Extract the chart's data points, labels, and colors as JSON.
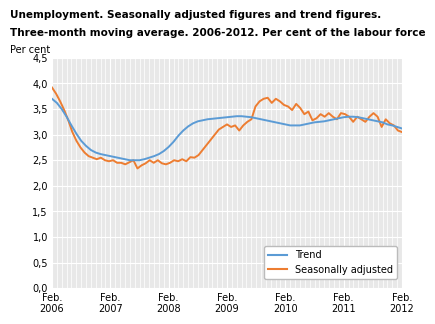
{
  "title_line1": "Unemployment. Seasonally adjusted figures and trend figures.",
  "title_line2": "Three-month moving average. 2006-2012. Per cent of the labour force",
  "ylabel": "Per cent",
  "ylim": [
    0.0,
    4.5
  ],
  "yticks": [
    0.0,
    0.5,
    1.0,
    1.5,
    2.0,
    2.5,
    3.0,
    3.5,
    4.0,
    4.5
  ],
  "ytick_labels": [
    "0,0",
    "0,5",
    "1,0",
    "1,5",
    "2,0",
    "2,5",
    "3,0",
    "3,5",
    "4,0",
    "4,5"
  ],
  "background_color": "#ffffff",
  "plot_bg_color": "#e8e8e8",
  "trend_color": "#5b9bd5",
  "seasonal_color": "#ed7d31",
  "trend_lw": 1.4,
  "seasonal_lw": 1.4,
  "xtick_labels": [
    "Feb.\n2006",
    "Feb.\n2007",
    "Feb.\n2008",
    "Feb.\n2009",
    "Feb.\n2010",
    "Feb.\n2011",
    "Feb.\n2012"
  ],
  "trend": [
    3.7,
    3.62,
    3.5,
    3.35,
    3.18,
    3.02,
    2.88,
    2.78,
    2.7,
    2.65,
    2.62,
    2.6,
    2.58,
    2.56,
    2.54,
    2.52,
    2.5,
    2.5,
    2.5,
    2.52,
    2.55,
    2.58,
    2.62,
    2.68,
    2.76,
    2.86,
    2.98,
    3.08,
    3.16,
    3.22,
    3.26,
    3.28,
    3.3,
    3.31,
    3.32,
    3.33,
    3.34,
    3.35,
    3.36,
    3.36,
    3.35,
    3.34,
    3.32,
    3.3,
    3.28,
    3.26,
    3.24,
    3.22,
    3.2,
    3.18,
    3.18,
    3.18,
    3.2,
    3.22,
    3.24,
    3.25,
    3.26,
    3.28,
    3.3,
    3.32,
    3.34,
    3.35,
    3.35,
    3.34,
    3.32,
    3.3,
    3.28,
    3.26,
    3.24,
    3.2,
    3.18,
    3.15,
    3.12
  ],
  "seasonal": [
    3.92,
    3.8,
    3.65,
    3.48,
    3.28,
    3.05,
    2.88,
    2.75,
    2.65,
    2.58,
    2.55,
    2.52,
    2.55,
    2.5,
    2.48,
    2.5,
    2.45,
    2.45,
    2.42,
    2.46,
    2.5,
    2.34,
    2.4,
    2.44,
    2.5,
    2.45,
    2.5,
    2.44,
    2.42,
    2.45,
    2.5,
    2.48,
    2.52,
    2.48,
    2.56,
    2.55,
    2.6,
    2.7,
    2.8,
    2.9,
    3.0,
    3.1,
    3.15,
    3.2,
    3.15,
    3.18,
    3.08,
    3.18,
    3.25,
    3.3,
    3.55,
    3.65,
    3.7,
    3.72,
    3.62,
    3.7,
    3.65,
    3.58,
    3.55,
    3.48,
    3.6,
    3.52,
    3.4,
    3.45,
    3.28,
    3.32,
    3.4,
    3.35,
    3.42,
    3.35,
    3.3,
    3.42,
    3.4,
    3.35,
    3.25,
    3.35,
    3.3,
    3.25,
    3.35,
    3.42,
    3.35,
    3.15,
    3.3,
    3.22,
    3.18,
    3.08,
    3.05
  ],
  "n_trend": 73,
  "n_seasonal": 87
}
